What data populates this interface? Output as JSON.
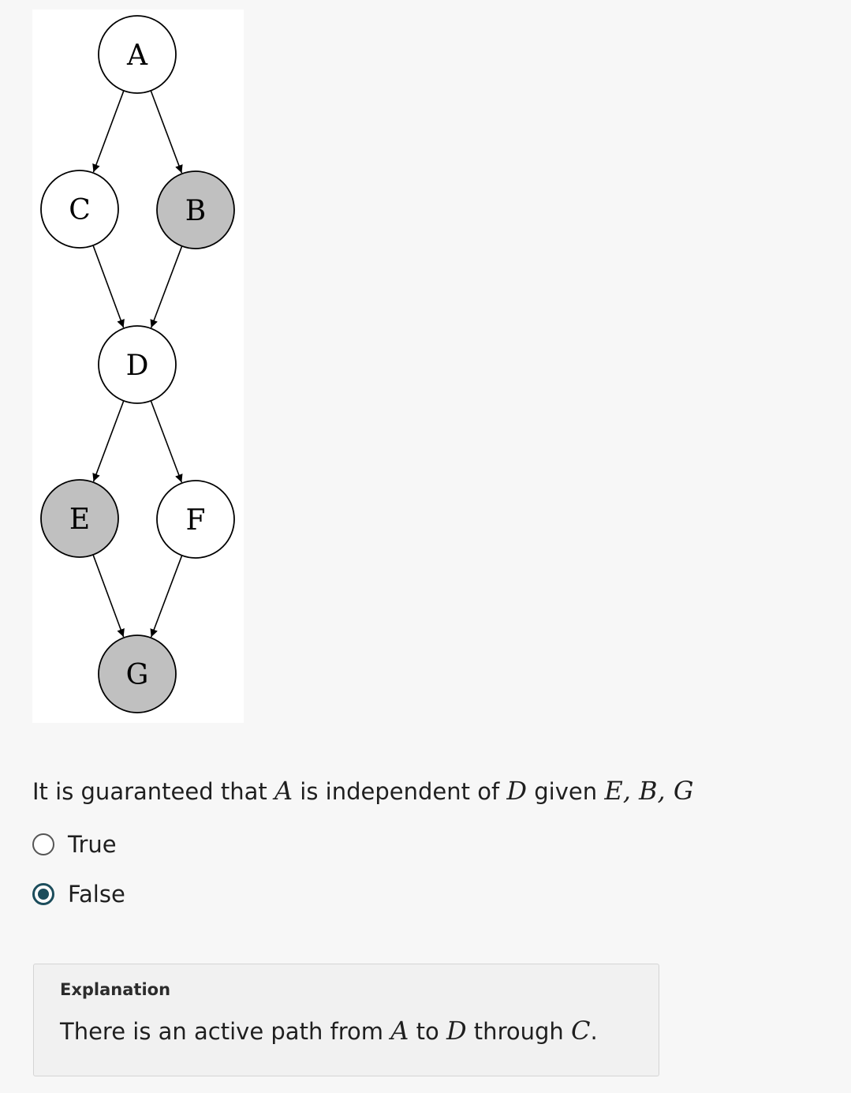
{
  "diagram": {
    "nodes": [
      {
        "id": "A",
        "label": "A",
        "observed": false
      },
      {
        "id": "C",
        "label": "C",
        "observed": false
      },
      {
        "id": "B",
        "label": "B",
        "observed": true
      },
      {
        "id": "D",
        "label": "D",
        "observed": false
      },
      {
        "id": "E",
        "label": "E",
        "observed": true
      },
      {
        "id": "F",
        "label": "F",
        "observed": false
      },
      {
        "id": "G",
        "label": "G",
        "observed": true
      }
    ],
    "edges": [
      {
        "from": "A",
        "to": "C"
      },
      {
        "from": "A",
        "to": "B"
      },
      {
        "from": "C",
        "to": "D"
      },
      {
        "from": "B",
        "to": "D"
      },
      {
        "from": "D",
        "to": "E"
      },
      {
        "from": "D",
        "to": "F"
      },
      {
        "from": "E",
        "to": "G"
      },
      {
        "from": "F",
        "to": "G"
      }
    ],
    "colors": {
      "observed_fill": "#c0c0c0",
      "unobserved_fill": "#ffffff",
      "stroke": "#000000"
    }
  },
  "question": {
    "text_before": "It is guaranteed that ",
    "var_a": "A",
    "text_middle": " is independent of ",
    "var_d": "D",
    "text_given": " given ",
    "given_set": "E, B, G"
  },
  "options": [
    {
      "label": "True",
      "selected": false
    },
    {
      "label": "False",
      "selected": true
    }
  ],
  "explanation": {
    "title": "Explanation",
    "text_before": "There is an active path from ",
    "var_a": "A",
    "text_to": " to ",
    "var_d": "D",
    "text_through": " through ",
    "var_c": "C",
    "text_end": "."
  },
  "theme": {
    "accent": "#1c4d5c"
  }
}
